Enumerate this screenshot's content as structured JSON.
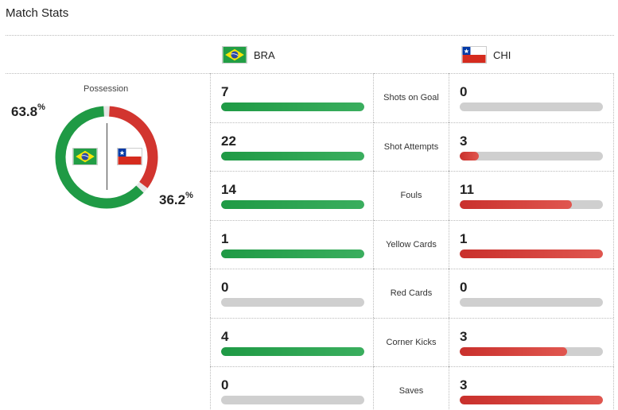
{
  "header": {
    "title": "Match Stats"
  },
  "teams": {
    "home": {
      "abbr": "BRA",
      "flag": "brazil-flag",
      "color": "#1f9a45"
    },
    "away": {
      "abbr": "CHI",
      "flag": "chile-flag",
      "color": "#d2352f"
    }
  },
  "possession": {
    "label": "Possession",
    "home_value": "63.8",
    "away_value": "36.2",
    "unit": "%",
    "home_fraction": 0.638,
    "away_fraction": 0.362
  },
  "stats": [
    {
      "label": "Shots on Goal",
      "home": "7",
      "away": "0",
      "home_fill": 1.0,
      "away_fill": 0.0
    },
    {
      "label": "Shot Attempts",
      "home": "22",
      "away": "3",
      "home_fill": 1.0,
      "away_fill": 0.136
    },
    {
      "label": "Fouls",
      "home": "14",
      "away": "11",
      "home_fill": 1.0,
      "away_fill": 0.786
    },
    {
      "label": "Yellow Cards",
      "home": "1",
      "away": "1",
      "home_fill": 1.0,
      "away_fill": 1.0
    },
    {
      "label": "Red Cards",
      "home": "0",
      "away": "0",
      "home_fill": 0.0,
      "away_fill": 0.0
    },
    {
      "label": "Corner Kicks",
      "home": "4",
      "away": "3",
      "home_fill": 1.0,
      "away_fill": 0.75
    },
    {
      "label": "Saves",
      "home": "0",
      "away": "3",
      "home_fill": 0.0,
      "away_fill": 1.0
    }
  ]
}
